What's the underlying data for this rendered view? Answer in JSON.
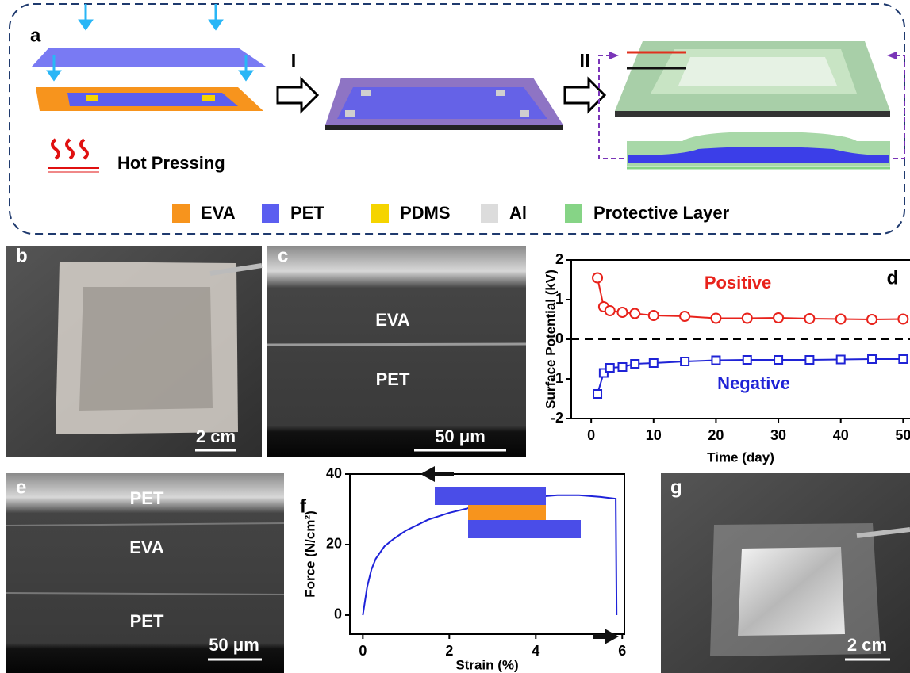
{
  "panel_labels": [
    "a",
    "b",
    "c",
    "d",
    "e",
    "f",
    "g"
  ],
  "panel_a": {
    "steps": [
      "I",
      "II"
    ],
    "hot_pressing": "Hot Pressing",
    "legend": [
      {
        "name": "EVA",
        "color": "#f7941d"
      },
      {
        "name": "PET",
        "color": "#5b5ef0"
      },
      {
        "name": "PDMS",
        "color": "#f5d400"
      },
      {
        "name": "Al",
        "color": "#dcdcdc"
      },
      {
        "name": "Protective Layer",
        "color": "#86d486"
      }
    ]
  },
  "panel_b": {
    "scale_bar": "2 cm"
  },
  "panel_c": {
    "layers": [
      "EVA",
      "PET"
    ],
    "scale_bar": "50 μm"
  },
  "panel_e": {
    "layers": [
      "PET",
      "EVA",
      "PET"
    ],
    "scale_bar": "50 μm"
  },
  "panel_g": {
    "scale_bar": "2 cm"
  },
  "chart_data": [
    {
      "type": "line",
      "xlabel": "Time (day)",
      "ylabel": "Surface Potential (kV)",
      "x": [
        1,
        2,
        3,
        5,
        7,
        10,
        15,
        20,
        25,
        30,
        35,
        40,
        45,
        50
      ],
      "series": [
        {
          "name": "Positive",
          "color": "#e8221b",
          "marker": "circle",
          "values": [
            1.55,
            0.82,
            0.72,
            0.68,
            0.65,
            0.6,
            0.58,
            0.53,
            0.53,
            0.54,
            0.52,
            0.51,
            0.5,
            0.51
          ]
        },
        {
          "name": "Negative",
          "color": "#1f23d6",
          "marker": "square",
          "values": [
            -1.38,
            -0.85,
            -0.72,
            -0.7,
            -0.62,
            -0.6,
            -0.56,
            -0.53,
            -0.52,
            -0.52,
            -0.52,
            -0.51,
            -0.5,
            -0.5
          ]
        }
      ],
      "xlim": [
        -3.2,
        51.1
      ],
      "ylim": [
        -2,
        2
      ],
      "xticks": [
        0,
        10,
        20,
        30,
        40,
        50
      ],
      "yticks": [
        -2,
        -1,
        0,
        1,
        2
      ],
      "zero_line": true
    },
    {
      "type": "line",
      "xlabel": "Strain (%)",
      "ylabel": "Force (N/cm²)",
      "x": [
        0,
        0.1,
        0.2,
        0.3,
        0.5,
        0.7,
        1,
        1.5,
        2,
        2.5,
        3,
        3.5,
        4,
        4.5,
        5,
        5.5,
        5.85,
        5.87
      ],
      "series": [
        {
          "color": "#1e22d9",
          "marker": "none",
          "values": [
            0,
            8,
            13,
            16,
            19.5,
            21.5,
            24,
            27,
            29,
            30.5,
            31.8,
            32.8,
            33.5,
            34,
            34,
            33.5,
            33,
            0
          ]
        }
      ],
      "xlim": [
        -0.3,
        6.05
      ],
      "ylim": [
        -5.4,
        40
      ],
      "xticks": [
        0,
        2,
        4,
        6
      ],
      "yticks": [
        0,
        20,
        40
      ],
      "zero_line": false
    }
  ]
}
